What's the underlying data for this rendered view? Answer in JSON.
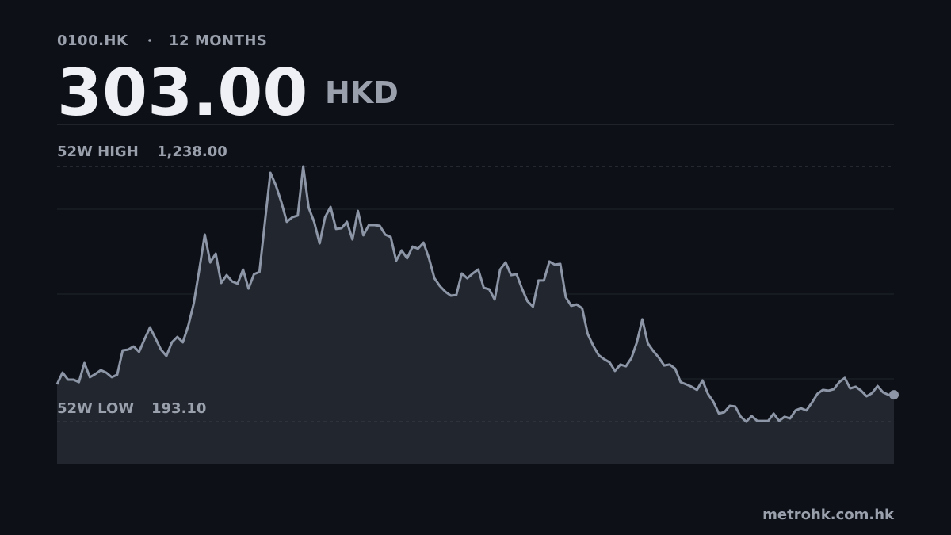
{
  "chart_data": {
    "type": "line",
    "ticker": "0100.HK",
    "period": "12 MONTHS",
    "price": {
      "value": 303,
      "label": "303.00"
    },
    "currency": "HKD",
    "high_label": "52W HIGH",
    "high": {
      "value": 1238,
      "label": "1,238.00"
    },
    "low_label": "52W LOW",
    "low": {
      "value": 193.1,
      "label": "193.10"
    },
    "source": "metrohk.com.hk",
    "color": "#8d96a6",
    "fill": "#22262e",
    "ylim": [
      21,
      1410
    ],
    "values": [
      346,
      394,
      365,
      365,
      355,
      433,
      375,
      388,
      404,
      394,
      375,
      385,
      485,
      488,
      501,
      479,
      531,
      579,
      534,
      488,
      462,
      518,
      540,
      518,
      586,
      677,
      816,
      959,
      845,
      881,
      761,
      793,
      767,
      758,
      816,
      738,
      797,
      806,
      1011,
      1212,
      1160,
      1092,
      1011,
      1030,
      1037,
      1238,
      1069,
      1011,
      923,
      1030,
      1072,
      982,
      985,
      1011,
      939,
      1056,
      956,
      998,
      998,
      995,
      959,
      949,
      852,
      894,
      862,
      910,
      901,
      926,
      862,
      780,
      748,
      725,
      709,
      712,
      800,
      780,
      800,
      816,
      741,
      735,
      693,
      816,
      845,
      793,
      797,
      738,
      686,
      664,
      771,
      771,
      849,
      836,
      839,
      703,
      667,
      673,
      657,
      553,
      505,
      466,
      449,
      436,
      401,
      427,
      420,
      453,
      518,
      612,
      514,
      482,
      456,
      423,
      427,
      410,
      355,
      346,
      336,
      323,
      362,
      307,
      274,
      226,
      232,
      258,
      255,
      213,
      193.1,
      216,
      196,
      196,
      196,
      226,
      196,
      213,
      206,
      239,
      248,
      239,
      271,
      307,
      323,
      320,
      326,
      355,
      372,
      329,
      336,
      320,
      297,
      310,
      339,
      313,
      303,
      303
    ]
  }
}
